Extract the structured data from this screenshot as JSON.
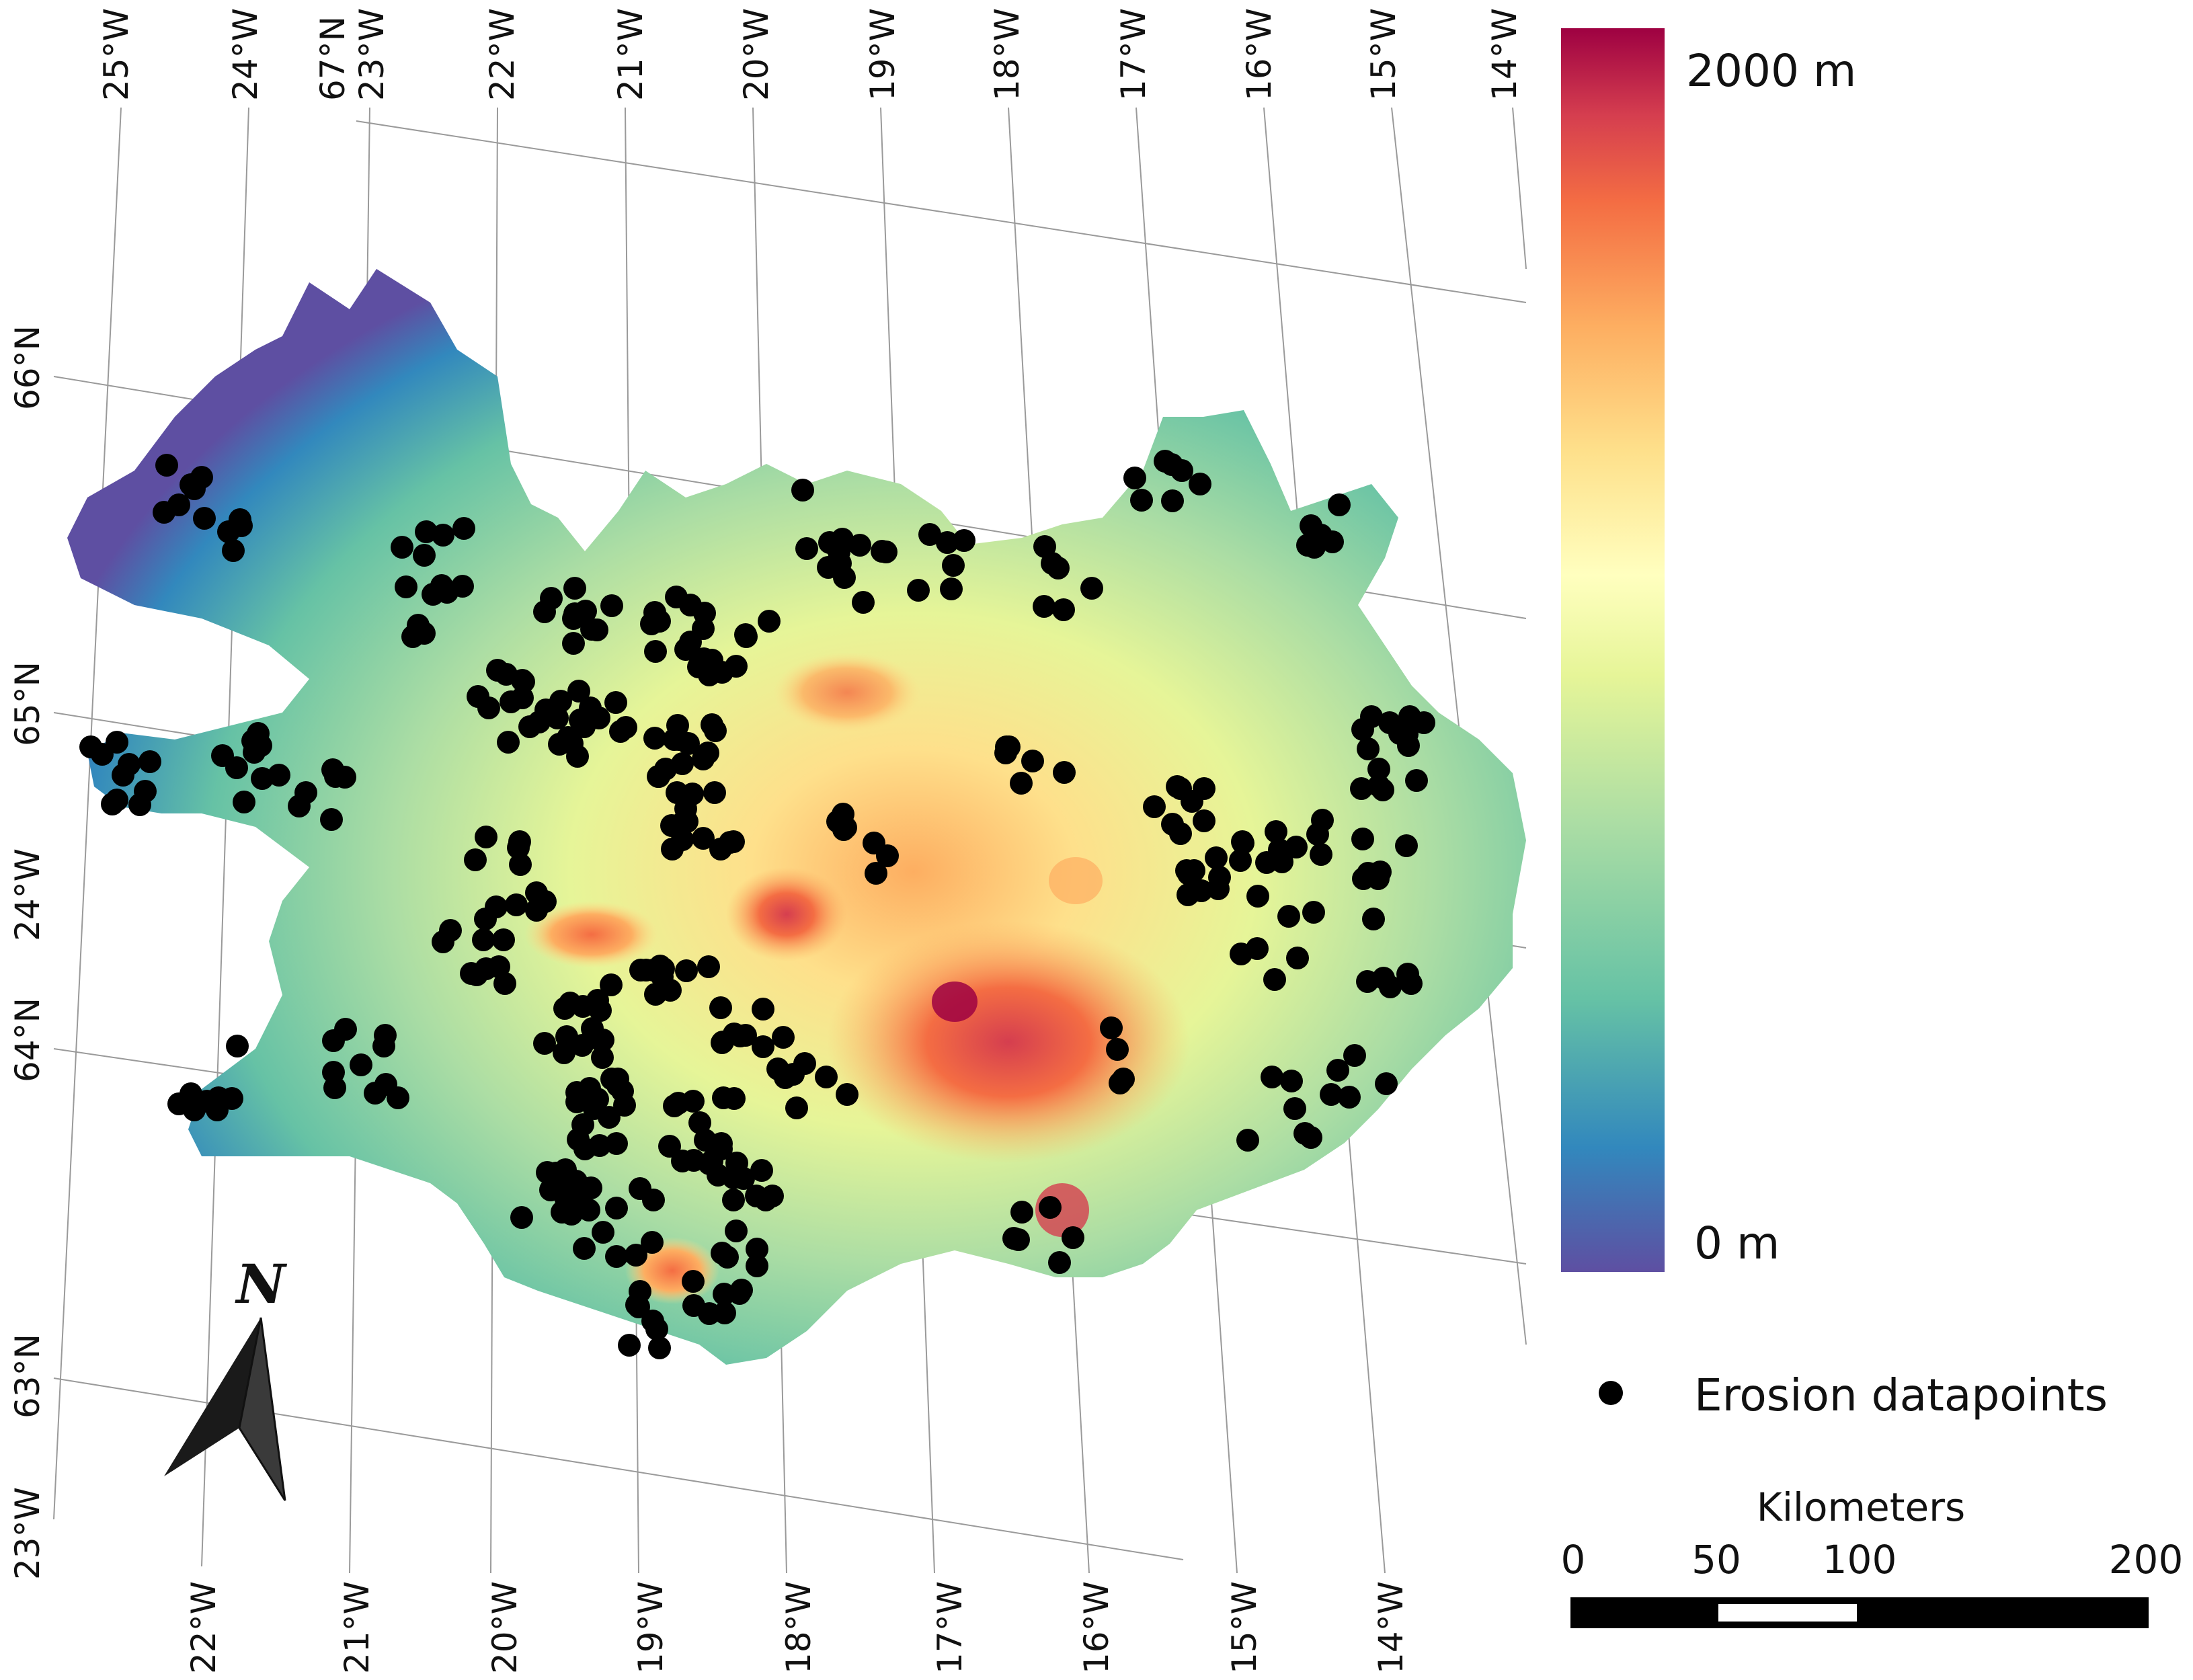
{
  "map": {
    "type": "elevation-map",
    "region": "Iceland",
    "colorbar": {
      "max_label": "2000 m",
      "min_label": "0 m",
      "colors": [
        "#5e4fa2",
        "#3288bd",
        "#66c2a5",
        "#abdda4",
        "#e6f598",
        "#ffffbf",
        "#fee08b",
        "#fdae61",
        "#f46d43",
        "#d53e4f",
        "#9e0142"
      ]
    },
    "legend": {
      "points_label": "Erosion datapoints",
      "point_color": "#000000"
    },
    "scalebar": {
      "title": "Kilometers",
      "ticks": [
        "0",
        "50",
        "100",
        "200"
      ]
    },
    "north_arrow": {
      "label": "N",
      "icon": "north-arrow-icon"
    },
    "graticule": {
      "top_labels": [
        "25°W",
        "24°W",
        "67°N",
        "23°W",
        "22°W",
        "21°W",
        "20°W",
        "19°W",
        "18°W",
        "17°W",
        "16°W",
        "15°W",
        "14°W"
      ],
      "left_labels": [
        "66°N",
        "65°N",
        "24°W",
        "64°N",
        "63°N",
        "23°W"
      ],
      "bottom_labels": [
        "22°W",
        "21°W",
        "20°W",
        "19°W",
        "18°W",
        "17°W",
        "16°W",
        "15°W",
        "14°W"
      ]
    }
  }
}
